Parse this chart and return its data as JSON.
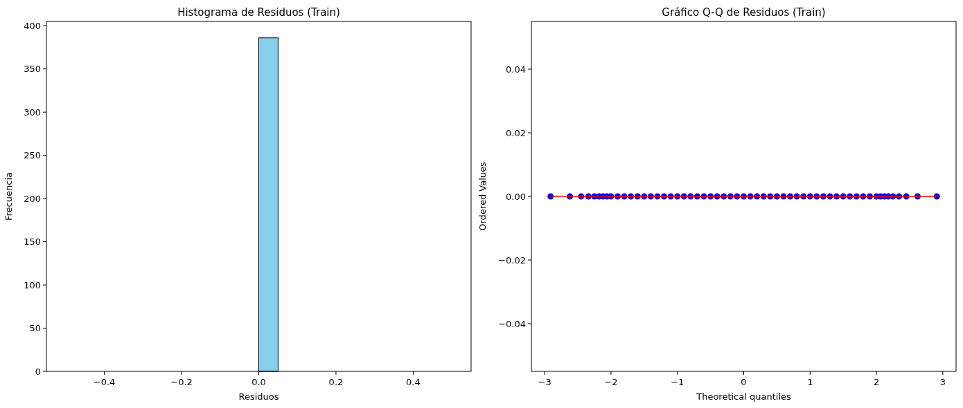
{
  "chart_data": [
    {
      "type": "histogram",
      "title": "Histograma de Residuos (Train)",
      "xlabel": "Residuos",
      "ylabel": "Frecuencia",
      "bins": [
        -0.5,
        -0.45,
        -0.4,
        -0.35,
        -0.3,
        -0.25,
        -0.2,
        -0.15,
        -0.1,
        -0.05,
        0,
        0.05,
        0.1,
        0.15,
        0.2,
        0.25,
        0.3,
        0.35,
        0.4,
        0.45,
        0.5
      ],
      "values": [
        0,
        0,
        0,
        0,
        0,
        0,
        0,
        0,
        0,
        0,
        386,
        0,
        0,
        0,
        0,
        0,
        0,
        0,
        0,
        0
      ],
      "color": "#87ceeb",
      "xlim": [
        -0.55,
        0.55
      ],
      "xticks": [
        {
          "value": -0.4,
          "label": "−0.4"
        },
        {
          "value": -0.2,
          "label": "−0.2"
        },
        {
          "value": 0,
          "label": "0.0"
        },
        0.2,
        0.4
      ],
      "ylim": [
        0,
        405
      ],
      "yticks": [
        0,
        50,
        100,
        150,
        200,
        250,
        300,
        350,
        400
      ]
    },
    {
      "type": "scatter",
      "title": "Gráfico Q-Q de Residuos (Train)",
      "xlabel": "Theoretical quantiles",
      "ylabel": "Ordered Values",
      "series": [
        {
          "color": "#0000ff",
          "marker": "circle",
          "x": [
            -2.91,
            -2.62,
            -2.45,
            -2.34,
            -2.25,
            -2.18,
            -2.12,
            -2.06,
            -2.0,
            -1.9,
            -1.8,
            -1.7,
            -1.6,
            -1.5,
            -1.4,
            -1.3,
            -1.2,
            -1.1,
            -1.0,
            -0.9,
            -0.8,
            -0.7,
            -0.6,
            -0.5,
            -0.4,
            -0.3,
            -0.2,
            -0.1,
            0,
            0.1,
            0.2,
            0.3,
            0.4,
            0.5,
            0.6,
            0.7,
            0.8,
            0.9,
            1.0,
            1.1,
            1.2,
            1.3,
            1.4,
            1.5,
            1.6,
            1.7,
            1.8,
            1.9,
            2.0,
            2.06,
            2.12,
            2.18,
            2.25,
            2.34,
            2.45,
            2.62,
            2.91
          ],
          "values": [
            0,
            0,
            0,
            0,
            0,
            0,
            0,
            0,
            0,
            0,
            0,
            0,
            0,
            0,
            0,
            0,
            0,
            0,
            0,
            0,
            0,
            0,
            0,
            0,
            0,
            0,
            0,
            0,
            0,
            0,
            0,
            0,
            0,
            0,
            0,
            0,
            0,
            0,
            0,
            0,
            0,
            0,
            0,
            0,
            0,
            0,
            0,
            0,
            0,
            0,
            0,
            0,
            0,
            0,
            0,
            0,
            0
          ]
        },
        {
          "type": "line",
          "marker": "none",
          "color": "#ff0000",
          "x": [
            -2.91,
            2.91
          ],
          "values": [
            0,
            0
          ]
        }
      ],
      "xlim": [
        -3.2,
        3.2
      ],
      "xticks": [
        {
          "value": -3,
          "label": "−3"
        },
        {
          "value": -2,
          "label": "−2"
        },
        {
          "value": -1,
          "label": "−1"
        },
        0,
        1,
        2,
        3
      ],
      "ylim": [
        -0.055,
        0.055
      ],
      "yticks": [
        {
          "value": -0.04,
          "label": "−0.04"
        },
        {
          "value": -0.02,
          "label": "−0.02"
        },
        {
          "value": 0,
          "label": "0.00"
        },
        0.02,
        0.04
      ]
    }
  ]
}
